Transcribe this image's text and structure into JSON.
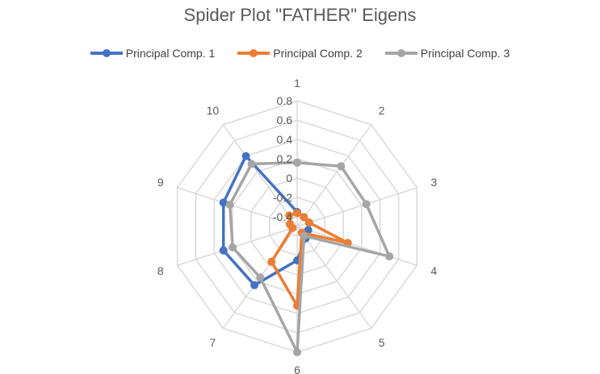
{
  "chart_data": {
    "type": "radar",
    "title": "Spider Plot \"FATHER\" Eigens",
    "categories": [
      "1",
      "2",
      "3",
      "4",
      "5",
      "6",
      "7",
      "8",
      "9",
      "10"
    ],
    "r_ticks": [
      "-0.4",
      "-0.2",
      "0",
      "0.2",
      "0.4",
      "0.6",
      "0.8"
    ],
    "r_range": [
      -0.5,
      0.8
    ],
    "grid": true,
    "legend_position": "top",
    "series": [
      {
        "name": "Principal Comp. 1",
        "color": "#4472C4",
        "values": [
          -0.35,
          -0.38,
          -0.37,
          -0.38,
          -0.35,
          -0.15,
          0.25,
          0.3,
          0.3,
          0.4
        ]
      },
      {
        "name": "Principal Comp. 2",
        "color": "#ED7D31",
        "values": [
          -0.36,
          -0.38,
          -0.37,
          0.05,
          -0.42,
          0.32,
          -0.05,
          -0.45,
          -0.42,
          -0.36
        ]
      },
      {
        "name": "Principal Comp. 3",
        "color": "#A5A5A5",
        "values": [
          0.16,
          0.27,
          0.25,
          0.5,
          -0.38,
          0.8,
          0.15,
          0.2,
          0.23,
          0.3
        ]
      }
    ]
  }
}
